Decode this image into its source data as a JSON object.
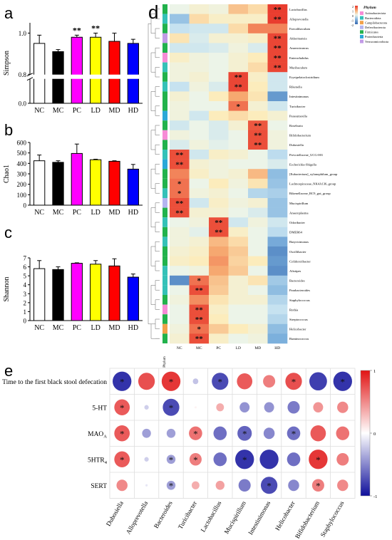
{
  "panels": {
    "a": "a",
    "b": "b",
    "c": "c",
    "d": "d",
    "e": "e"
  },
  "chart_data": [
    {
      "type": "bar",
      "panel": "a",
      "ylabel": "Simpson",
      "categories": [
        "NC",
        "MC",
        "PC",
        "LD",
        "MD",
        "HD"
      ],
      "values": [
        0.95,
        0.91,
        0.98,
        0.98,
        0.96,
        0.95
      ],
      "errors": [
        0.04,
        0.01,
        0.01,
        0.02,
        0.04,
        0.02
      ],
      "significance": [
        "",
        "",
        "**",
        "**",
        "",
        ""
      ],
      "colors": [
        "#ffffff",
        "#000000",
        "#ff00ff",
        "#ffff00",
        "#ff0000",
        "#0000ff"
      ],
      "ylim": [
        0,
        1.05
      ],
      "axis_break": [
        0.2,
        0.8
      ],
      "yticks": [
        "0.0",
        "0.8",
        "1.0"
      ]
    },
    {
      "type": "bar",
      "panel": "b",
      "ylabel": "Chao1",
      "categories": [
        "NC",
        "MC",
        "PC",
        "LD",
        "MD",
        "HD"
      ],
      "values": [
        425,
        410,
        495,
        435,
        420,
        345
      ],
      "errors": [
        55,
        15,
        90,
        5,
        5,
        45
      ],
      "colors": [
        "#ffffff",
        "#000000",
        "#ff00ff",
        "#ffff00",
        "#ff0000",
        "#0000ff"
      ],
      "ylim": [
        0,
        600
      ],
      "yticks": [
        "0",
        "100",
        "200",
        "300",
        "400",
        "500",
        "600"
      ]
    },
    {
      "type": "bar",
      "panel": "c",
      "ylabel": "Shannon",
      "categories": [
        "NC",
        "MC",
        "PC",
        "LD",
        "MD",
        "HD"
      ],
      "values": [
        5.8,
        5.7,
        6.4,
        6.3,
        6.1,
        4.85
      ],
      "errors": [
        0.9,
        0.3,
        0.05,
        0.4,
        0.8,
        0.35
      ],
      "colors": [
        "#ffffff",
        "#000000",
        "#ff00ff",
        "#ffff00",
        "#ff0000",
        "#0000ff"
      ],
      "ylim": [
        0,
        7
      ],
      "yticks": [
        "0",
        "1",
        "2",
        "3",
        "4",
        "5",
        "6",
        "7"
      ]
    },
    {
      "type": "heatmap",
      "panel": "d",
      "columns": [
        "NC",
        "MC",
        "PC",
        "LD",
        "MD",
        "HD"
      ],
      "rows": [
        {
          "name": "Lactobacillus",
          "phylum": "Firmicutes",
          "values": [
            0.0,
            0.2,
            0.1,
            0.9,
            0.6,
            2.4
          ],
          "sig": [
            "",
            "",
            "",
            "",
            "",
            "**"
          ]
        },
        {
          "name": "Alloprevotella",
          "phylum": "Bacteroidota",
          "values": [
            -0.9,
            0.6,
            0.3,
            0.3,
            0.3,
            2.4
          ],
          "sig": [
            "",
            "",
            "",
            "",
            "",
            "**"
          ]
        },
        {
          "name": "Faecalibaculum",
          "phylum": "Firmicutes",
          "values": [
            -0.4,
            -0.3,
            -0.3,
            0.6,
            1.6,
            1.6
          ],
          "sig": [
            "",
            "",
            "",
            "",
            "",
            ""
          ]
        },
        {
          "name": "Akkermansia",
          "phylum": "Verrucomicrobiota",
          "values": [
            0.5,
            -0.2,
            0.2,
            0.2,
            0.3,
            2.3
          ],
          "sig": [
            "",
            "",
            "",
            "",
            "",
            "**"
          ]
        },
        {
          "name": "Anaerotruncus",
          "phylum": "Firmicutes",
          "values": [
            -0.3,
            -0.3,
            -0.2,
            0.1,
            -0.2,
            2.3
          ],
          "sig": [
            "",
            "",
            "",
            "",
            "",
            "**"
          ]
        },
        {
          "name": "Enterorhabdus",
          "phylum": "Actinobacteriota",
          "values": [
            0.3,
            0.1,
            0.0,
            0.2,
            0.4,
            2.3
          ],
          "sig": [
            "",
            "",
            "",
            "",
            "",
            "**"
          ]
        },
        {
          "name": "Muribaculum",
          "phylum": "Bacteroidota",
          "values": [
            0.1,
            0.1,
            0.0,
            0.2,
            0.6,
            2.3
          ],
          "sig": [
            "",
            "",
            "",
            "",
            "",
            "**"
          ]
        },
        {
          "name": "Erysipelatoclostridium",
          "phylum": "Firmicutes",
          "values": [
            0.1,
            0.2,
            0.0,
            2.3,
            0.3,
            -0.3
          ],
          "sig": [
            "",
            "",
            "",
            "**",
            "",
            ""
          ]
        },
        {
          "name": "Rikenella",
          "phylum": "Bacteroidota",
          "values": [
            -0.4,
            0.1,
            -0.2,
            2.3,
            0.4,
            -0.3
          ],
          "sig": [
            "",
            "",
            "",
            "**",
            "",
            ""
          ]
        },
        {
          "name": "Intestinimonas",
          "phylum": "Firmicutes",
          "values": [
            0.2,
            0.0,
            0.4,
            1.2,
            0.5,
            -1.6
          ],
          "sig": [
            "",
            "",
            "",
            "",
            "",
            ""
          ]
        },
        {
          "name": "Turicibacter",
          "phylum": "Firmicutes",
          "values": [
            0.1,
            0.0,
            0.0,
            1.8,
            0.2,
            -0.3
          ],
          "sig": [
            "",
            "",
            "",
            "*",
            "",
            ""
          ]
        },
        {
          "name": "Parasutterella",
          "phylum": "Proteobacteria",
          "values": [
            0.1,
            -0.3,
            0.4,
            0.6,
            0.4,
            0.2
          ],
          "sig": [
            "",
            "",
            "",
            "",
            "",
            ""
          ]
        },
        {
          "name": "Roseburia",
          "phylum": "Firmicutes",
          "values": [
            -0.3,
            0.0,
            -0.2,
            0.2,
            2.1,
            0.0
          ],
          "sig": [
            "",
            "",
            "",
            "",
            "**",
            ""
          ]
        },
        {
          "name": "Bifidobacterium",
          "phylum": "Actinobacteriota",
          "values": [
            0.1,
            0.0,
            -0.2,
            0.0,
            2.2,
            0.1
          ],
          "sig": [
            "",
            "",
            "",
            "",
            "**",
            ""
          ]
        },
        {
          "name": "Dubosiella",
          "phylum": "Firmicutes",
          "values": [
            -0.2,
            0.1,
            -0.1,
            0.0,
            2.2,
            0.1
          ],
          "sig": [
            "",
            "",
            "",
            "",
            "**",
            ""
          ]
        },
        {
          "name": "Prevotellaceae_UCG-001",
          "phylum": "Bacteroidota",
          "values": [
            2.2,
            -0.3,
            0.3,
            0.2,
            0.0,
            -0.5
          ],
          "sig": [
            "**",
            "",
            "",
            "",
            "",
            ""
          ]
        },
        {
          "name": "Escherichia-Shigella",
          "phylum": "Proteobacteria",
          "values": [
            2.2,
            0.2,
            0.1,
            0.0,
            0.0,
            -0.2
          ],
          "sig": [
            "**",
            "",
            "",
            "",
            "",
            ""
          ]
        },
        {
          "name": "[Eubacterium]_xylanophilum_group",
          "phylum": "Firmicutes",
          "values": [
            1.6,
            0.3,
            0.1,
            0.2,
            1.0,
            -1.0
          ],
          "sig": [
            "",
            "",
            "",
            "",
            "",
            ""
          ]
        },
        {
          "name": "Lachnospiraceae_NK4A136_group",
          "phylum": "Firmicutes",
          "values": [
            1.8,
            0.0,
            0.4,
            0.1,
            0.5,
            -0.9
          ],
          "sig": [
            "*",
            "",
            "",
            "",
            "",
            ""
          ]
        },
        {
          "name": "Rikenellaceae_RC9_gut_group",
          "phylum": "Bacteroidota",
          "values": [
            1.8,
            0.1,
            0.2,
            0.0,
            -0.6,
            -0.7
          ],
          "sig": [
            "*",
            "",
            "",
            "",
            "",
            ""
          ]
        },
        {
          "name": "Mucispirillum",
          "phylum": "Deferribacterota",
          "values": [
            2.2,
            -0.3,
            0.3,
            0.1,
            0.2,
            -0.9
          ],
          "sig": [
            "**",
            "",
            "",
            "",
            "",
            ""
          ]
        },
        {
          "name": "Anaeroplasma",
          "phylum": "Firmicutes",
          "values": [
            2.2,
            0.2,
            0.2,
            0.0,
            -0.2,
            -0.9
          ],
          "sig": [
            "**",
            "",
            "",
            "",
            "",
            ""
          ]
        },
        {
          "name": "Odoribacter",
          "phylum": "Bacteroidota",
          "values": [
            0.0,
            0.1,
            2.2,
            -0.3,
            0.1,
            -0.3
          ],
          "sig": [
            "",
            "",
            "**",
            "",
            "",
            ""
          ]
        },
        {
          "name": "DMER64",
          "phylum": "Firmicutes",
          "values": [
            0.1,
            -0.1,
            2.2,
            0.3,
            0.0,
            -0.5
          ],
          "sig": [
            "",
            "",
            "**",
            "",
            "",
            ""
          ]
        },
        {
          "name": "Butyricimonas",
          "phylum": "Bacteroidota",
          "values": [
            0.1,
            0.2,
            1.0,
            0.6,
            0.0,
            -1.3
          ],
          "sig": [
            "",
            "",
            "",
            "",
            "",
            ""
          ]
        },
        {
          "name": "Oscillibacter",
          "phylum": "Firmicutes",
          "values": [
            0.2,
            0.3,
            1.2,
            0.8,
            0.0,
            -1.8
          ],
          "sig": [
            "",
            "",
            "",
            "",
            "",
            ""
          ]
        },
        {
          "name": "Colidextribacter",
          "phylum": "Firmicutes",
          "values": [
            0.3,
            0.4,
            1.4,
            0.7,
            0.4,
            -1.6
          ],
          "sig": [
            "",
            "",
            "",
            "",
            "",
            ""
          ]
        },
        {
          "name": "Alistipes",
          "phylum": "Bacteroidota",
          "values": [
            0.0,
            0.1,
            1.2,
            0.8,
            0.0,
            -1.8
          ],
          "sig": [
            "",
            "",
            "",
            "",
            "",
            ""
          ]
        },
        {
          "name": "Bacteroides",
          "phylum": "Bacteroidota",
          "values": [
            -1.8,
            1.8,
            0.9,
            0.2,
            0.5,
            -0.8
          ],
          "sig": [
            "",
            "*",
            "",
            "",
            "",
            ""
          ]
        },
        {
          "name": "Parabacteroides",
          "phylum": "Bacteroidota",
          "values": [
            0.0,
            2.2,
            0.8,
            0.2,
            0.0,
            -1.0
          ],
          "sig": [
            "",
            "**",
            "",
            "",
            "",
            ""
          ]
        },
        {
          "name": "Staphylococcus",
          "phylum": "Firmicutes",
          "values": [
            0.1,
            1.5,
            0.5,
            0.2,
            0.2,
            -0.6
          ],
          "sig": [
            "",
            "",
            "",
            "",
            "",
            ""
          ]
        },
        {
          "name": "Rothia",
          "phylum": "Actinobacteriota",
          "values": [
            0.0,
            2.2,
            0.3,
            0.0,
            0.0,
            -0.4
          ],
          "sig": [
            "",
            "**",
            "",
            "",
            "",
            ""
          ]
        },
        {
          "name": "Streptococcus",
          "phylum": "Firmicutes",
          "values": [
            0.0,
            2.2,
            0.4,
            0.0,
            0.0,
            -0.6
          ],
          "sig": [
            "",
            "**",
            "",
            "",
            "",
            ""
          ]
        },
        {
          "name": "Helicobacter",
          "phylum": "Campilobacterota",
          "values": [
            0.1,
            1.8,
            0.8,
            0.4,
            0.2,
            -1.0
          ],
          "sig": [
            "",
            "*",
            "",
            "",
            "",
            ""
          ]
        },
        {
          "name": "Ruminococcus",
          "phylum": "Firmicutes",
          "values": [
            0.2,
            2.2,
            0.3,
            0.0,
            0.1,
            -1.2
          ],
          "sig": [
            "",
            "**",
            "",
            "",
            "",
            ""
          ]
        }
      ],
      "legend_title": "Phylum",
      "phyla": [
        {
          "name": "Actinobacteriota",
          "color": "#f78bd6"
        },
        {
          "name": "Bacteroidota",
          "color": "#35c1b8"
        },
        {
          "name": "Campilobacterota",
          "color": "#f2a14a"
        },
        {
          "name": "Deferribacterota",
          "color": "#b4b4f0"
        },
        {
          "name": "Firmicutes",
          "color": "#22b24c"
        },
        {
          "name": "Proteobacteria",
          "color": "#2ba8d8"
        },
        {
          "name": "Verrucomicrobiota",
          "color": "#c29ae6"
        }
      ],
      "scale_ticks": [
        "2",
        "1",
        "0",
        "-1",
        "-2"
      ],
      "phylum_axis_label": "Phylum"
    },
    {
      "type": "heatmap",
      "subtype": "correlation",
      "panel": "e",
      "rows": [
        "Time to the first black stool defecation",
        "5-HT",
        "MAOA",
        "5HTR4",
        "SERT"
      ],
      "row_subscripts": [
        "",
        "",
        "A",
        "4",
        ""
      ],
      "row_base": [
        "Time to the first black stool defecation",
        "5-HT",
        "MAO",
        "5HTR",
        "SERT"
      ],
      "columns": [
        "Dubosiella",
        "Alloprevotella",
        "Bacteroides",
        "Turicibacter",
        "Lactobacillus",
        "Mucispirillum",
        "Intestinimonas",
        "Helicobacter",
        "Bifidobacterium",
        "Staphylococcus"
      ],
      "values": [
        [
          -0.85,
          0.75,
          0.85,
          -0.25,
          -0.75,
          0.7,
          0.55,
          0.75,
          -0.8,
          -0.85
        ],
        [
          0.7,
          -0.2,
          -0.75,
          0.05,
          0.35,
          -0.45,
          -0.45,
          -0.55,
          0.45,
          0.5
        ],
        [
          0.7,
          -0.4,
          -0.4,
          0.6,
          -0.6,
          -0.65,
          -0.5,
          -0.6,
          0.7,
          0.6
        ],
        [
          0.7,
          -0.2,
          -0.4,
          0.55,
          -0.6,
          -0.85,
          -0.85,
          -0.6,
          0.85,
          0.55
        ],
        [
          0.5,
          -0.1,
          -0.4,
          0.35,
          0.4,
          -0.55,
          -0.75,
          -0.5,
          0.55,
          0.5
        ]
      ],
      "sig": [
        [
          "*",
          "",
          "*",
          "",
          "*",
          "",
          "",
          "*",
          "",
          "*"
        ],
        [
          "*",
          "",
          "*",
          "",
          "",
          "",
          "",
          "",
          "",
          ""
        ],
        [
          "*",
          "",
          "",
          "*",
          "",
          "*",
          "",
          "*",
          "",
          ""
        ],
        [
          "*",
          "",
          "*",
          "*",
          "",
          "*",
          "",
          "",
          "*",
          ""
        ],
        [
          "",
          "",
          "*",
          "",
          "",
          "",
          "*",
          "",
          "*",
          ""
        ]
      ],
      "scale_ticks": [
        "1",
        "0",
        "-1"
      ],
      "vlim": [
        -1,
        1
      ]
    }
  ]
}
